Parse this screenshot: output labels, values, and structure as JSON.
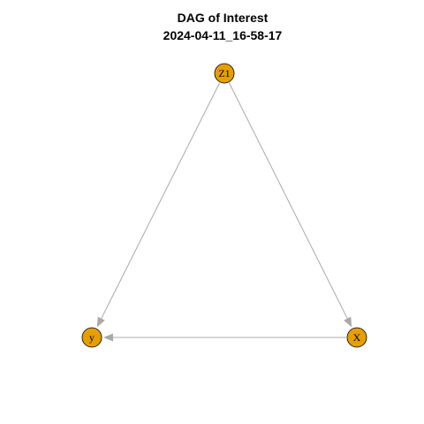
{
  "title": {
    "line1": "DAG of Interest",
    "line2": "2024-04-11_16-58-17"
  },
  "nodes": [
    {
      "id": "Z1",
      "label": "Z1"
    },
    {
      "id": "y",
      "label": "y"
    },
    {
      "id": "X",
      "label": "X"
    }
  ],
  "edges": [
    {
      "from": "Z1",
      "to": "y"
    },
    {
      "from": "Z1",
      "to": "X"
    },
    {
      "from": "X",
      "to": "y"
    }
  ],
  "colors": {
    "node_fill": "#E69F00",
    "node_stroke": "#000000",
    "edge": "#A9A9A9",
    "background": "#FFFFFF"
  }
}
